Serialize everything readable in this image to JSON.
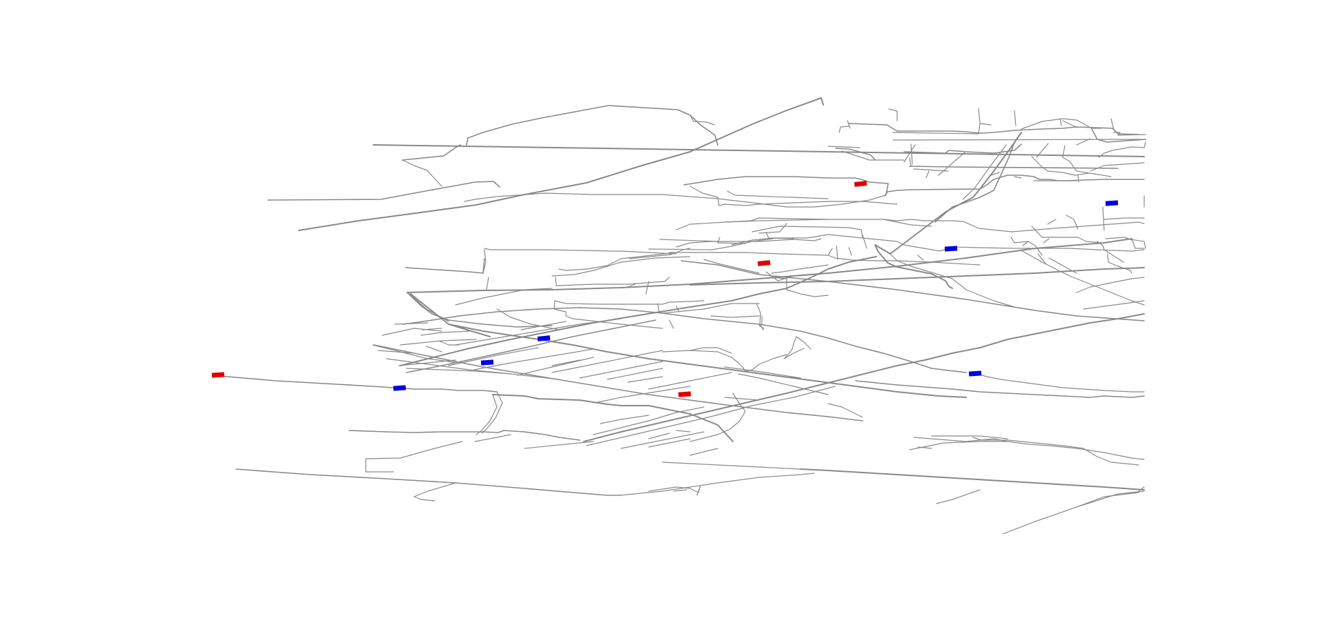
{
  "map": {
    "road_color": "#888888",
    "background_color": "#ffffff",
    "marker_types": {
      "red": "#e00000",
      "blue": "#0000e0"
    },
    "markers": [
      {
        "id": "marker-red-1",
        "type": "red"
      },
      {
        "id": "marker-red-2",
        "type": "red"
      },
      {
        "id": "marker-red-3",
        "type": "red"
      },
      {
        "id": "marker-red-4",
        "type": "red"
      },
      {
        "id": "marker-blue-1",
        "type": "blue"
      },
      {
        "id": "marker-blue-2",
        "type": "blue"
      },
      {
        "id": "marker-blue-3",
        "type": "blue"
      },
      {
        "id": "marker-blue-4",
        "type": "blue"
      },
      {
        "id": "marker-blue-5",
        "type": "blue"
      },
      {
        "id": "marker-blue-6",
        "type": "blue"
      }
    ]
  }
}
